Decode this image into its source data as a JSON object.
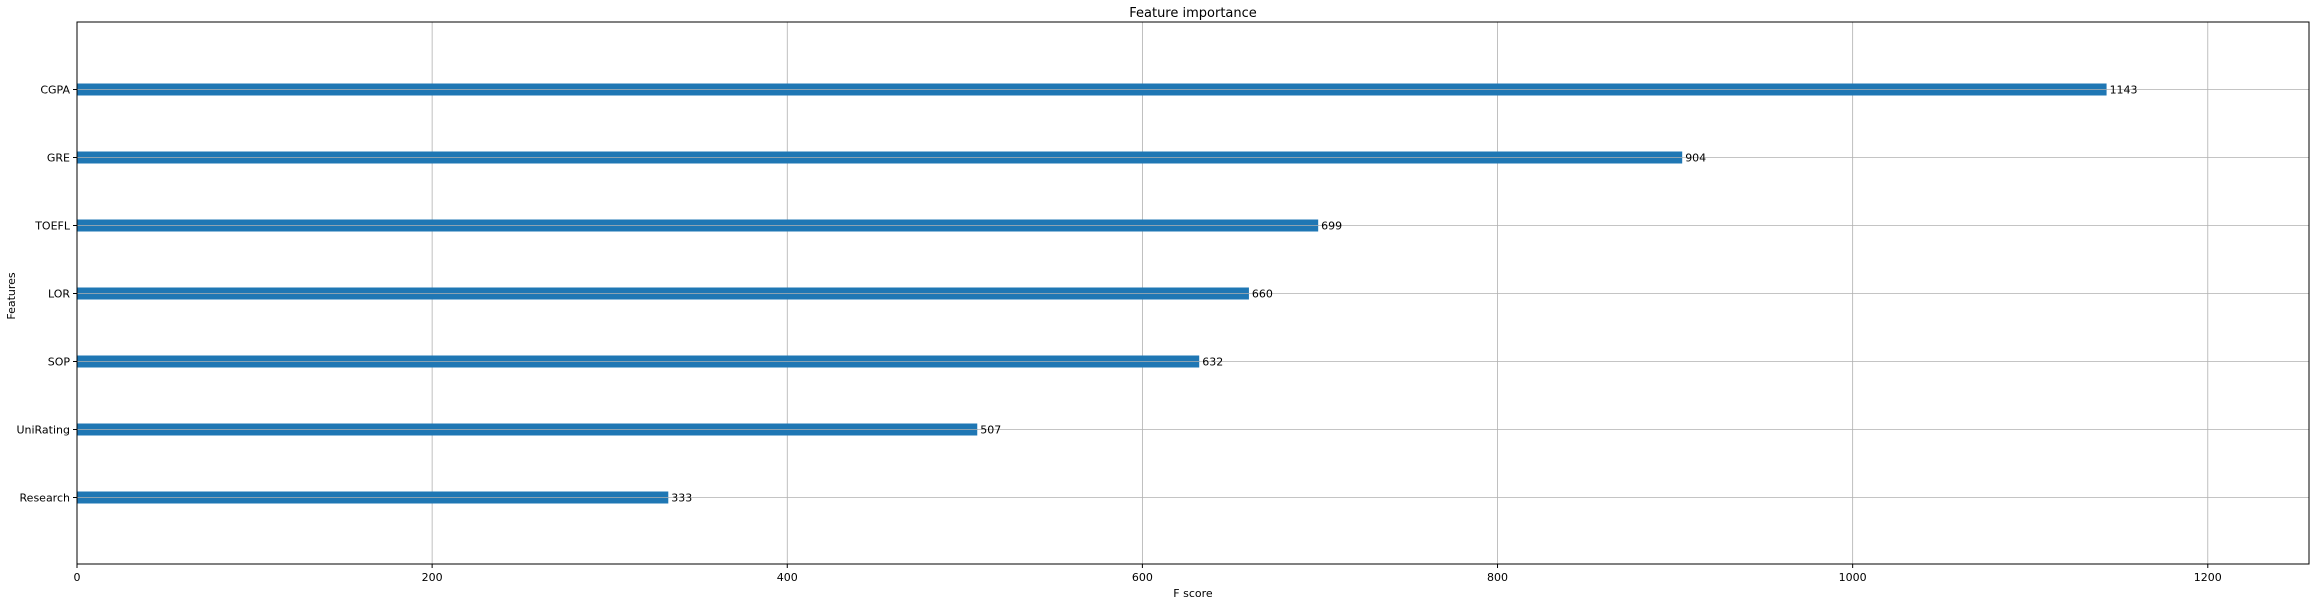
{
  "chart_data": {
    "type": "bar",
    "orientation": "horizontal",
    "title": "Feature importance",
    "xlabel": "F score",
    "ylabel": "Features",
    "categories": [
      "Research",
      "UniRating",
      "SOP",
      "LOR",
      "TOEFL",
      "GRE",
      "CGPA"
    ],
    "values": [
      333,
      507,
      632,
      660,
      699,
      904,
      1143
    ],
    "xlim": [
      0,
      1257
    ],
    "xticks": [
      0,
      200,
      400,
      600,
      800,
      1000,
      1200
    ],
    "grid": true,
    "bar_color": "#1f77b4",
    "data_labels": true
  }
}
